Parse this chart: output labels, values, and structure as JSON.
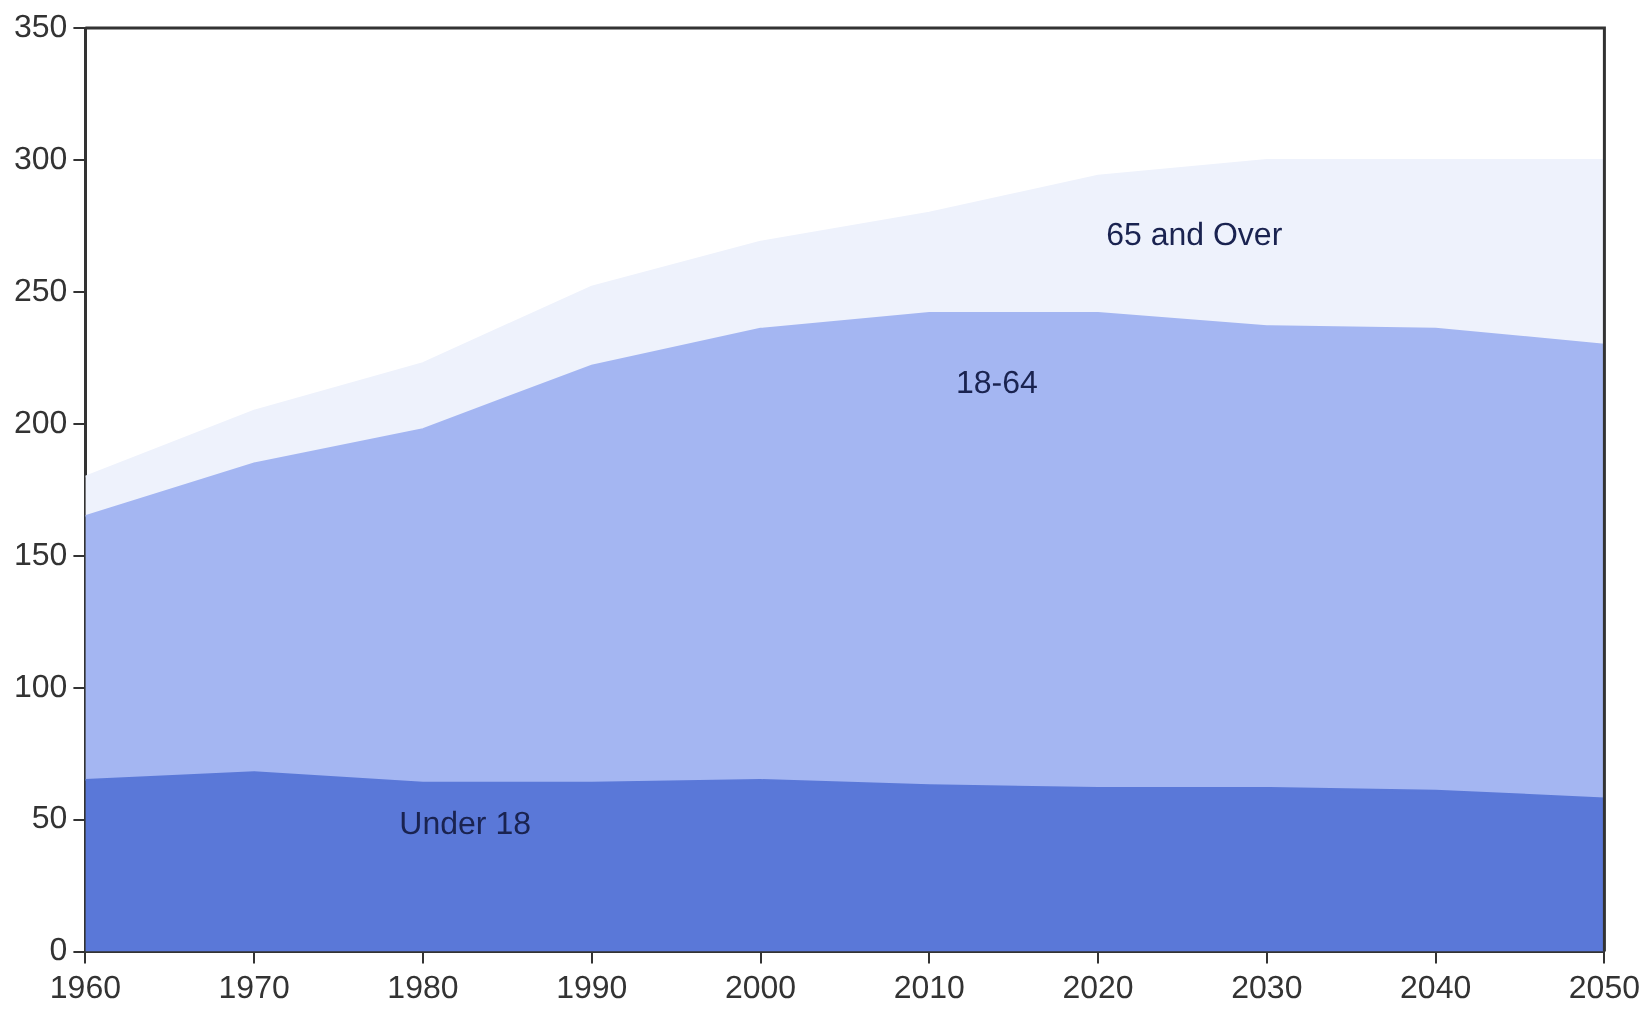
{
  "chart_data": {
    "type": "area",
    "stacked": true,
    "x": [
      1960,
      1970,
      1980,
      1990,
      2000,
      2010,
      2020,
      2030,
      2040,
      2050
    ],
    "series": [
      {
        "name": "Under 18",
        "color": "#5a78d8",
        "values": [
          65,
          68,
          64,
          64,
          65,
          63,
          62,
          62,
          61,
          58
        ]
      },
      {
        "name": "18-64",
        "color": "#a4b6f2",
        "values": [
          100,
          117,
          134,
          158,
          171,
          179,
          180,
          175,
          175,
          172
        ]
      },
      {
        "name": "65 and Over",
        "color": "#eef2fc",
        "values": [
          15,
          20,
          25,
          30,
          33,
          38,
          52,
          63,
          64,
          70
        ]
      }
    ],
    "xlim": [
      1960,
      2050
    ],
    "xticks": [
      1960,
      1970,
      1980,
      1990,
      2000,
      2010,
      2020,
      2030,
      2040,
      2050
    ],
    "ylim": [
      0,
      350
    ],
    "yticks": [
      0,
      50,
      100,
      150,
      200,
      250,
      300,
      350
    ],
    "grid": false,
    "legend": false
  }
}
